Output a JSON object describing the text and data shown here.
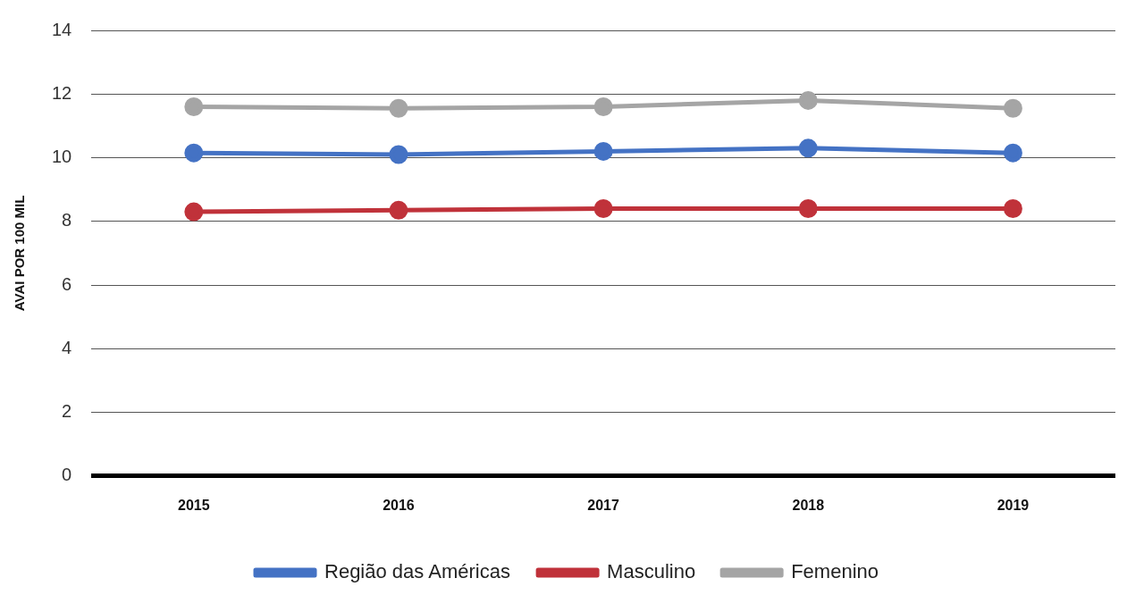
{
  "chart_data": {
    "type": "line",
    "ylabel": "AVAI POR 100 MIL",
    "categories": [
      "2015",
      "2016",
      "2017",
      "2018",
      "2019"
    ],
    "series": [
      {
        "name": "Região das Américas",
        "color": "#4472c4",
        "values": [
          10.15,
          10.1,
          10.2,
          10.3,
          10.15
        ]
      },
      {
        "name": "Masculino",
        "color": "#c0323a",
        "values": [
          8.3,
          8.35,
          8.4,
          8.4,
          8.4
        ]
      },
      {
        "name": "Femenino",
        "color": "#a5a5a5",
        "values": [
          11.6,
          11.55,
          11.6,
          11.8,
          11.55
        ]
      }
    ],
    "ylim": [
      0,
      14
    ],
    "yticks": [
      0,
      2,
      4,
      6,
      8,
      10,
      12,
      14
    ],
    "grid": "y",
    "legend": "bottom",
    "marker": "circle",
    "line_style": "solid"
  }
}
